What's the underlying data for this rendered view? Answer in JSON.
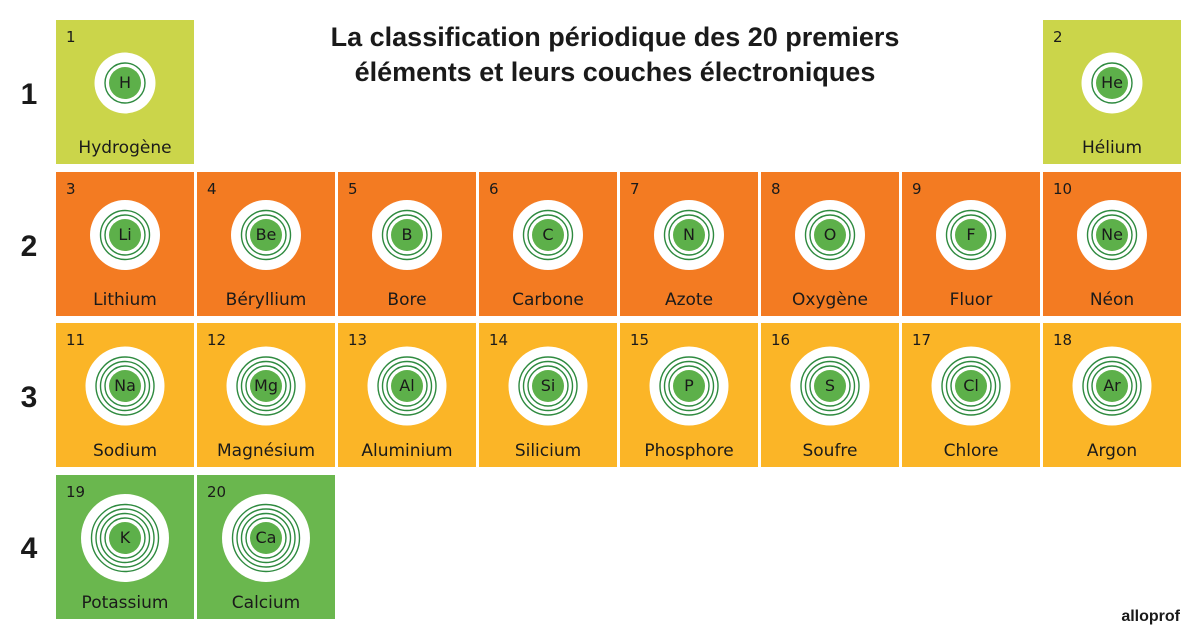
{
  "title_line1": "La classification périodique des 20 premiers",
  "title_line2": "éléments et leurs couches électroniques",
  "periods": [
    "1",
    "2",
    "3",
    "4"
  ],
  "colors": {
    "group_period1": "#cbd54a",
    "group_period2": "#f37b22",
    "group_period3": "#fbb527",
    "group_period4": "#6ab74e",
    "nucleus": "#5db04a",
    "shell_stroke": "#2e8a3f"
  },
  "elements": [
    {
      "number": "1",
      "symbol": "H",
      "name": "Hydrogène",
      "period": 1,
      "column": 1,
      "shells": 1
    },
    {
      "number": "2",
      "symbol": "He",
      "name": "Hélium",
      "period": 1,
      "column": 8,
      "shells": 1
    },
    {
      "number": "3",
      "symbol": "Li",
      "name": "Lithium",
      "period": 2,
      "column": 1,
      "shells": 2
    },
    {
      "number": "4",
      "symbol": "Be",
      "name": "Béryllium",
      "period": 2,
      "column": 2,
      "shells": 2
    },
    {
      "number": "5",
      "symbol": "B",
      "name": "Bore",
      "period": 2,
      "column": 3,
      "shells": 2
    },
    {
      "number": "6",
      "symbol": "C",
      "name": "Carbone",
      "period": 2,
      "column": 4,
      "shells": 2
    },
    {
      "number": "7",
      "symbol": "N",
      "name": "Azote",
      "period": 2,
      "column": 5,
      "shells": 2
    },
    {
      "number": "8",
      "symbol": "O",
      "name": "Oxygène",
      "period": 2,
      "column": 6,
      "shells": 2
    },
    {
      "number": "9",
      "symbol": "F",
      "name": "Fluor",
      "period": 2,
      "column": 7,
      "shells": 2
    },
    {
      "number": "10",
      "symbol": "Ne",
      "name": "Néon",
      "period": 2,
      "column": 8,
      "shells": 2
    },
    {
      "number": "11",
      "symbol": "Na",
      "name": "Sodium",
      "period": 3,
      "column": 1,
      "shells": 3
    },
    {
      "number": "12",
      "symbol": "Mg",
      "name": "Magnésium",
      "period": 3,
      "column": 2,
      "shells": 3
    },
    {
      "number": "13",
      "symbol": "Al",
      "name": "Aluminium",
      "period": 3,
      "column": 3,
      "shells": 3
    },
    {
      "number": "14",
      "symbol": "Si",
      "name": "Silicium",
      "period": 3,
      "column": 4,
      "shells": 3
    },
    {
      "number": "15",
      "symbol": "P",
      "name": "Phosphore",
      "period": 3,
      "column": 5,
      "shells": 3
    },
    {
      "number": "16",
      "symbol": "S",
      "name": "Soufre",
      "period": 3,
      "column": 6,
      "shells": 3
    },
    {
      "number": "17",
      "symbol": "Cl",
      "name": "Chlore",
      "period": 3,
      "column": 7,
      "shells": 3
    },
    {
      "number": "18",
      "symbol": "Ar",
      "name": "Argon",
      "period": 3,
      "column": 8,
      "shells": 3
    },
    {
      "number": "19",
      "symbol": "K",
      "name": "Potassium",
      "period": 4,
      "column": 1,
      "shells": 4
    },
    {
      "number": "20",
      "symbol": "Ca",
      "name": "Calcium",
      "period": 4,
      "column": 2,
      "shells": 4
    }
  ],
  "logo": "alloprof"
}
